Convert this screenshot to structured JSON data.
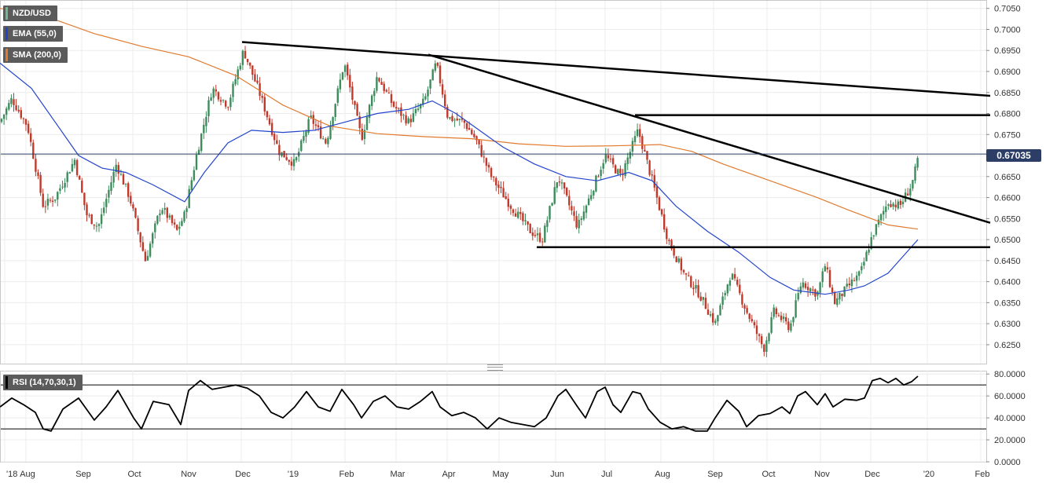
{
  "chart_data": [
    {
      "type": "candlestick",
      "title": "NZD/USD",
      "indicators": [
        {
          "name": "EMA (55,0)",
          "color": "#2244cc"
        },
        {
          "name": "SMA (200,0)",
          "color": "#e07a2e"
        }
      ],
      "y_ticks": [
        "0.7050",
        "0.7000",
        "0.6950",
        "0.6900",
        "0.6850",
        "0.6800",
        "0.6750",
        "0.6700",
        "0.6650",
        "0.6600",
        "0.6550",
        "0.6500",
        "0.6450",
        "0.6400",
        "0.6350",
        "0.6300",
        "0.6250"
      ],
      "ylim": [
        0.6205,
        0.707
      ],
      "x_ticks": [
        "'18",
        "Aug",
        "Sep",
        "Oct",
        "Nov",
        "Dec",
        "'19",
        "Feb",
        "Mar",
        "Apr",
        "May",
        "Jun",
        "Jul",
        "Aug",
        "Sep",
        "Oct",
        "Nov",
        "Dec",
        "'20",
        "Feb"
      ],
      "last_price": "0.67035",
      "close_path": [
        [
          0,
          0.678
        ],
        [
          15,
          0.6835
        ],
        [
          35,
          0.677
        ],
        [
          55,
          0.658
        ],
        [
          70,
          0.66
        ],
        [
          95,
          0.669
        ],
        [
          110,
          0.656
        ],
        [
          125,
          0.653
        ],
        [
          148,
          0.668
        ],
        [
          165,
          0.66
        ],
        [
          185,
          0.645
        ],
        [
          205,
          0.658
        ],
        [
          225,
          0.652
        ],
        [
          235,
          0.656
        ],
        [
          250,
          0.67
        ],
        [
          270,
          0.686
        ],
        [
          290,
          0.682
        ],
        [
          310,
          0.695
        ],
        [
          330,
          0.685
        ],
        [
          355,
          0.671
        ],
        [
          375,
          0.668
        ],
        [
          395,
          0.679
        ],
        [
          415,
          0.673
        ],
        [
          438,
          0.692
        ],
        [
          460,
          0.674
        ],
        [
          480,
          0.689
        ],
        [
          500,
          0.682
        ],
        [
          520,
          0.678
        ],
        [
          540,
          0.683
        ],
        [
          555,
          0.692
        ],
        [
          570,
          0.679
        ],
        [
          590,
          0.678
        ],
        [
          605,
          0.674
        ],
        [
          625,
          0.665
        ],
        [
          650,
          0.658
        ],
        [
          675,
          0.652
        ],
        [
          690,
          0.65
        ],
        [
          710,
          0.665
        ],
        [
          735,
          0.653
        ],
        [
          750,
          0.66
        ],
        [
          770,
          0.67
        ],
        [
          790,
          0.665
        ],
        [
          812,
          0.676
        ],
        [
          830,
          0.664
        ],
        [
          850,
          0.65
        ],
        [
          870,
          0.642
        ],
        [
          890,
          0.637
        ],
        [
          910,
          0.63
        ],
        [
          930,
          0.642
        ],
        [
          950,
          0.633
        ],
        [
          972,
          0.624
        ],
        [
          985,
          0.633
        ],
        [
          1005,
          0.629
        ],
        [
          1020,
          0.64
        ],
        [
          1040,
          0.637
        ],
        [
          1050,
          0.644
        ],
        [
          1062,
          0.635
        ],
        [
          1080,
          0.639
        ],
        [
          1095,
          0.642
        ],
        [
          1110,
          0.651
        ],
        [
          1130,
          0.659
        ],
        [
          1145,
          0.658
        ],
        [
          1160,
          0.663
        ],
        [
          1170,
          0.67035
        ]
      ],
      "ema_path": [
        [
          0,
          0.692
        ],
        [
          40,
          0.686
        ],
        [
          70,
          0.678
        ],
        [
          100,
          0.67
        ],
        [
          130,
          0.667
        ],
        [
          160,
          0.666
        ],
        [
          195,
          0.663
        ],
        [
          235,
          0.659
        ],
        [
          260,
          0.666
        ],
        [
          290,
          0.673
        ],
        [
          320,
          0.676
        ],
        [
          360,
          0.6755
        ],
        [
          400,
          0.676
        ],
        [
          440,
          0.678
        ],
        [
          480,
          0.68
        ],
        [
          520,
          0.681
        ],
        [
          550,
          0.683
        ],
        [
          580,
          0.68
        ],
        [
          610,
          0.676
        ],
        [
          640,
          0.672
        ],
        [
          680,
          0.668
        ],
        [
          720,
          0.665
        ],
        [
          760,
          0.664
        ],
        [
          800,
          0.666
        ],
        [
          830,
          0.664
        ],
        [
          860,
          0.658
        ],
        [
          900,
          0.652
        ],
        [
          940,
          0.647
        ],
        [
          980,
          0.641
        ],
        [
          1010,
          0.638
        ],
        [
          1050,
          0.637
        ],
        [
          1080,
          0.638
        ],
        [
          1100,
          0.639
        ],
        [
          1130,
          0.642
        ],
        [
          1168,
          0.65
        ]
      ],
      "sma_path": [
        [
          0,
          0.705
        ],
        [
          60,
          0.703
        ],
        [
          120,
          0.699
        ],
        [
          180,
          0.696
        ],
        [
          240,
          0.6935
        ],
        [
          300,
          0.689
        ],
        [
          360,
          0.682
        ],
        [
          420,
          0.677
        ],
        [
          480,
          0.6752
        ],
        [
          540,
          0.6745
        ],
        [
          600,
          0.674
        ],
        [
          660,
          0.6728
        ],
        [
          720,
          0.6722
        ],
        [
          780,
          0.6723
        ],
        [
          840,
          0.6726
        ],
        [
          880,
          0.671
        ],
        [
          920,
          0.668
        ],
        [
          980,
          0.664
        ],
        [
          1040,
          0.66
        ],
        [
          1080,
          0.657
        ],
        [
          1130,
          0.6535
        ],
        [
          1168,
          0.6525
        ]
      ],
      "trendlines": [
        {
          "from": [
            308,
            0.697
          ],
          "to": [
            1260,
            0.6842
          ]
        },
        {
          "from": [
            545,
            0.694
          ],
          "to": [
            1260,
            0.654
          ]
        },
        {
          "from": [
            808,
            0.6796
          ],
          "to": [
            1260,
            0.6796
          ]
        },
        {
          "from": [
            683,
            0.6482
          ],
          "to": [
            1260,
            0.6482
          ]
        }
      ]
    },
    {
      "type": "line",
      "title": "RSI (14,70,30,1)",
      "y_ticks": [
        "80.0000",
        "60.0000",
        "40.0000",
        "20.0000",
        "0.0000"
      ],
      "ylim": [
        0,
        83
      ],
      "levels": [
        70,
        30
      ],
      "path": [
        [
          0,
          50
        ],
        [
          15,
          58
        ],
        [
          30,
          52
        ],
        [
          45,
          45
        ],
        [
          55,
          30
        ],
        [
          65,
          28
        ],
        [
          80,
          48
        ],
        [
          100,
          58
        ],
        [
          120,
          38
        ],
        [
          135,
          50
        ],
        [
          150,
          65
        ],
        [
          170,
          40
        ],
        [
          180,
          30
        ],
        [
          195,
          55
        ],
        [
          215,
          52
        ],
        [
          230,
          34
        ],
        [
          240,
          65
        ],
        [
          255,
          74
        ],
        [
          270,
          66
        ],
        [
          285,
          68
        ],
        [
          300,
          70
        ],
        [
          315,
          67
        ],
        [
          330,
          60
        ],
        [
          345,
          45
        ],
        [
          360,
          40
        ],
        [
          375,
          50
        ],
        [
          390,
          64
        ],
        [
          405,
          50
        ],
        [
          420,
          46
        ],
        [
          435,
          66
        ],
        [
          450,
          52
        ],
        [
          460,
          40
        ],
        [
          475,
          55
        ],
        [
          490,
          60
        ],
        [
          505,
          50
        ],
        [
          520,
          48
        ],
        [
          535,
          55
        ],
        [
          550,
          64
        ],
        [
          560,
          50
        ],
        [
          575,
          42
        ],
        [
          590,
          45
        ],
        [
          605,
          40
        ],
        [
          620,
          30
        ],
        [
          635,
          40
        ],
        [
          650,
          36
        ],
        [
          665,
          34
        ],
        [
          680,
          32
        ],
        [
          695,
          40
        ],
        [
          710,
          60
        ],
        [
          720,
          66
        ],
        [
          735,
          50
        ],
        [
          745,
          40
        ],
        [
          760,
          64
        ],
        [
          770,
          68
        ],
        [
          780,
          52
        ],
        [
          790,
          45
        ],
        [
          805,
          64
        ],
        [
          815,
          62
        ],
        [
          825,
          48
        ],
        [
          840,
          36
        ],
        [
          855,
          30
        ],
        [
          870,
          32
        ],
        [
          885,
          28
        ],
        [
          900,
          28
        ],
        [
          910,
          40
        ],
        [
          925,
          56
        ],
        [
          940,
          46
        ],
        [
          950,
          32
        ],
        [
          965,
          42
        ],
        [
          980,
          44
        ],
        [
          995,
          50
        ],
        [
          1005,
          44
        ],
        [
          1015,
          60
        ],
        [
          1025,
          64
        ],
        [
          1040,
          52
        ],
        [
          1050,
          62
        ],
        [
          1060,
          50
        ],
        [
          1075,
          57
        ],
        [
          1090,
          56
        ],
        [
          1100,
          58
        ],
        [
          1110,
          74
        ],
        [
          1120,
          76
        ],
        [
          1130,
          72
        ],
        [
          1140,
          76
        ],
        [
          1150,
          70
        ],
        [
          1160,
          73
        ],
        [
          1168,
          78
        ]
      ]
    }
  ]
}
